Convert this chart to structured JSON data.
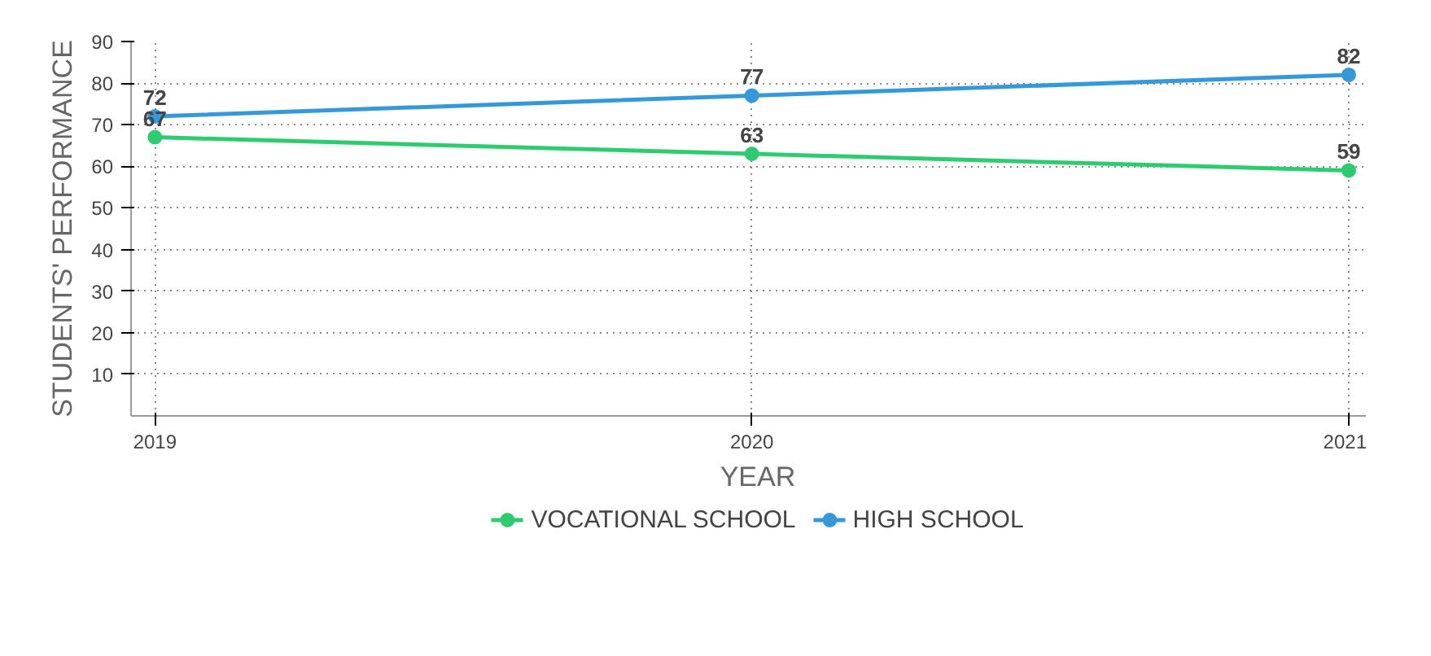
{
  "chart_data": {
    "type": "line",
    "xlabel": "YEAR",
    "ylabel": "STUDENTS' PERFORMANCE",
    "x": [
      2019,
      2020,
      2021
    ],
    "xlim": [
      2018.96,
      2021.06
    ],
    "xticks": [
      2019,
      2020,
      2021
    ],
    "ylim": [
      0,
      90
    ],
    "yticks": [
      10,
      20,
      30,
      40,
      50,
      60,
      70,
      80,
      90
    ],
    "series": [
      {
        "name": "VOCATIONAL SCHOOL",
        "color": "#2ecc71",
        "values": [
          67,
          63,
          59
        ]
      },
      {
        "name": "HIGH SCHOOL",
        "color": "#3498db",
        "values": [
          72,
          77,
          82
        ]
      }
    ],
    "data_labels": true,
    "grid": true,
    "legend": "bottom",
    "marker": "circle",
    "line_style": "solid"
  }
}
